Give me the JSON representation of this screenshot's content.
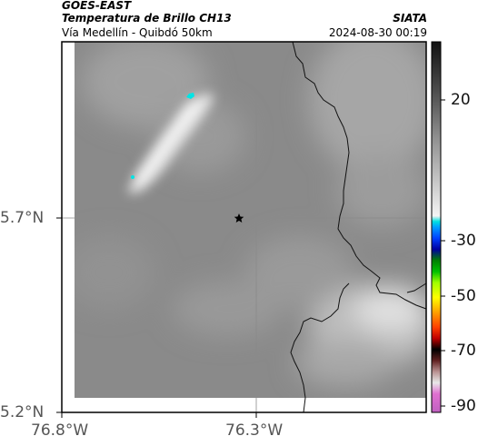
{
  "header": {
    "satellite": "GOES-EAST",
    "product": "Temperatura de Brillo CH13",
    "region": "Vía Medellín - Quibdó 50km",
    "agency": "SIATA",
    "datetime": "2024-08-30 00:19"
  },
  "axes": {
    "lat_ticks": [
      "5.7°N",
      "5.2°N"
    ],
    "lon_ticks": [
      "76.8°W",
      "76.3°W"
    ]
  },
  "colorbar": {
    "ticks": [
      "20",
      "-30",
      "-50",
      "-70",
      "-90"
    ]
  },
  "colors": {
    "cold_cloud": "#00e5e5",
    "coast_line": "#000000",
    "grid_line": "#8a8a8a"
  },
  "markers": {
    "city_marker": "star"
  }
}
